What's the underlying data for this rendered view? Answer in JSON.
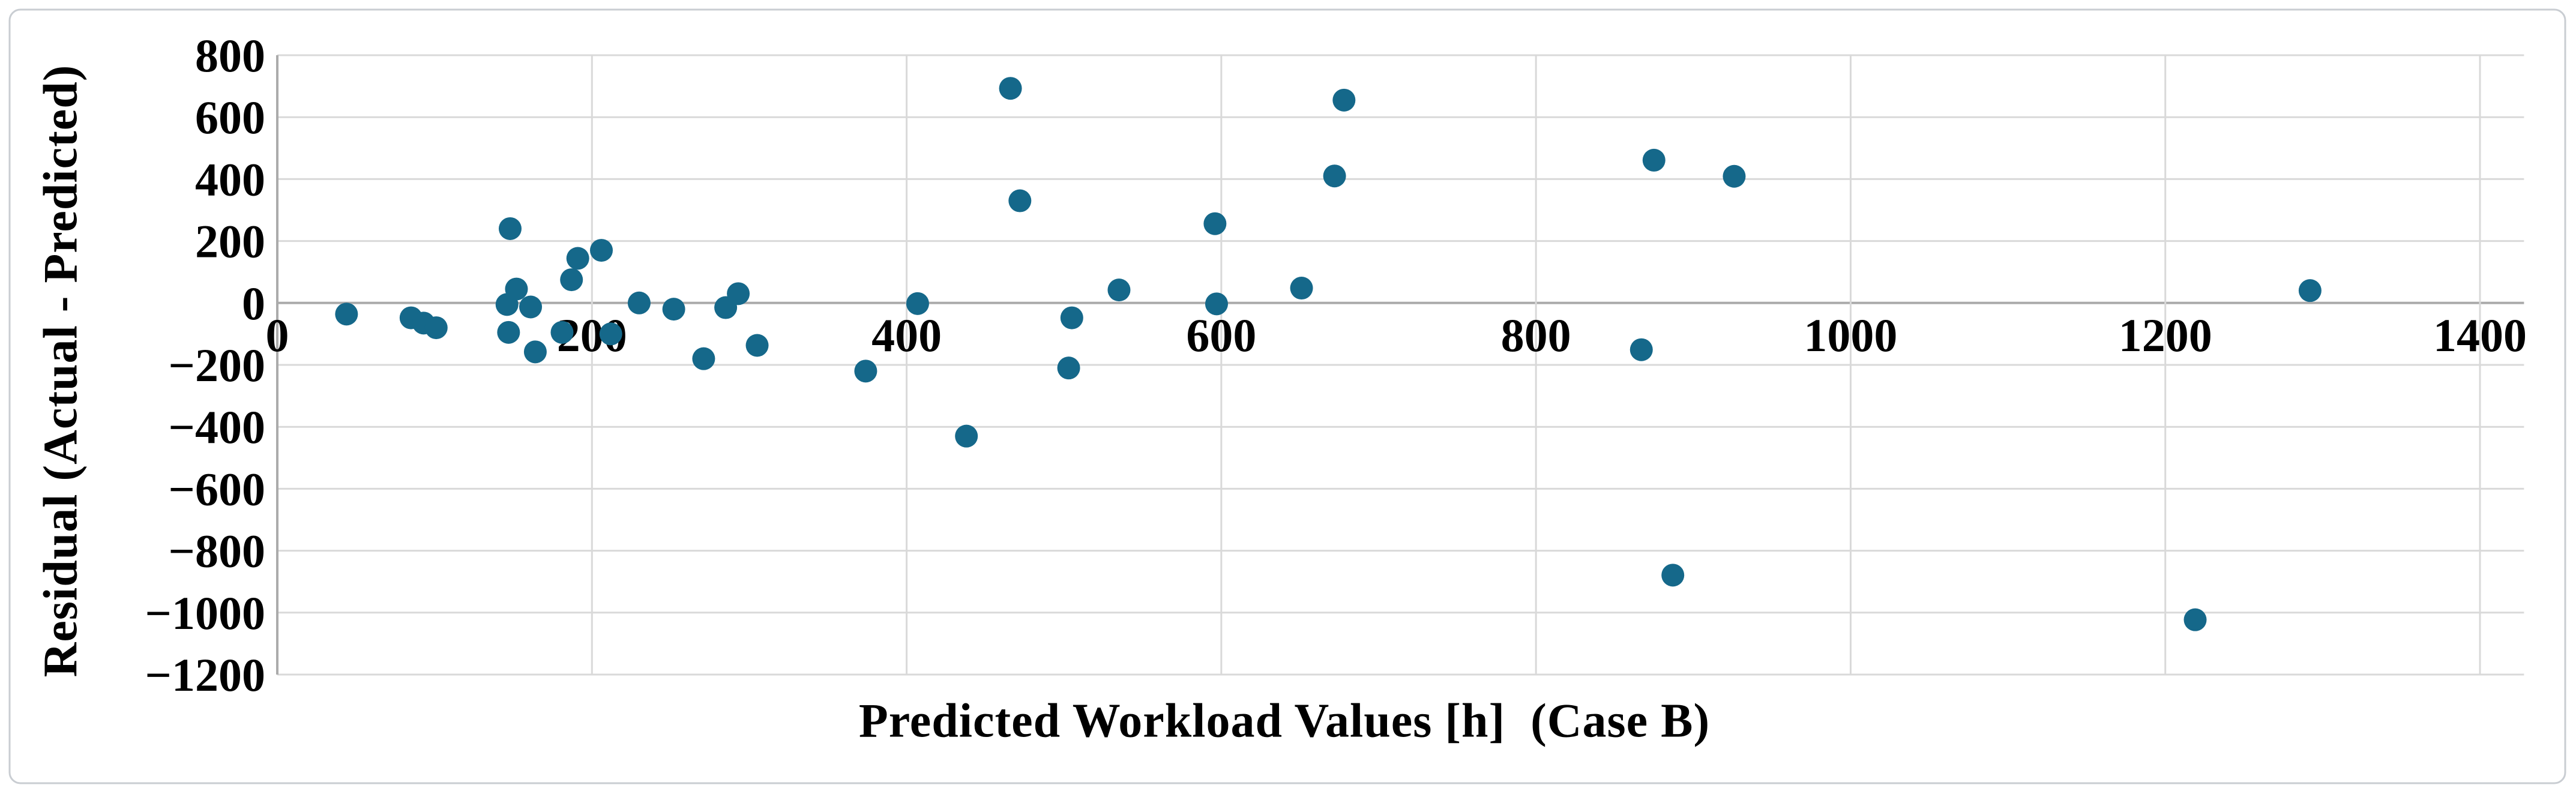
{
  "figure": {
    "background_color": "#FFFFFF",
    "border_color": "#C9CDD2"
  },
  "chart_data": {
    "type": "scatter",
    "title": "",
    "xlabel": "Predicted Workload Values [h]  (Case B)",
    "ylabel": "Residual (Actual - Predicted)",
    "xlim": [
      0,
      1428
    ],
    "ylim": [
      -1200,
      800
    ],
    "grid": true,
    "legend": "none",
    "x_ticks": [
      0,
      200,
      400,
      600,
      800,
      1000,
      1200,
      1400
    ],
    "x_tick_labels": [
      "0",
      "200",
      "400",
      "600",
      "800",
      "1000",
      "1200",
      "1400"
    ],
    "y_ticks": [
      800,
      600,
      400,
      200,
      0,
      -200,
      -400,
      -600,
      -800,
      -1000,
      -1200
    ],
    "y_tick_labels": [
      "800",
      "600",
      "400",
      "200",
      "0",
      "−200",
      "−400",
      "−600",
      "−800",
      "−1000",
      "−1200"
    ],
    "marker_color": "#15688A",
    "marker_radius_px": 19,
    "gridline_color": "#D9D9D9",
    "axisline_color": "#ABABAB",
    "tick_label_color": "#000000",
    "points": [
      [
        44,
        -36
      ],
      [
        85,
        -48
      ],
      [
        93,
        -65
      ],
      [
        101,
        -80
      ],
      [
        148,
        240
      ],
      [
        146,
        -5
      ],
      [
        152,
        45
      ],
      [
        161,
        -13
      ],
      [
        147,
        -95
      ],
      [
        164,
        -158
      ],
      [
        181,
        -95
      ],
      [
        187,
        75
      ],
      [
        191,
        144
      ],
      [
        206,
        170
      ],
      [
        212,
        -100
      ],
      [
        230,
        0
      ],
      [
        252,
        -20
      ],
      [
        271,
        -180
      ],
      [
        285,
        -15
      ],
      [
        293,
        30
      ],
      [
        305,
        -137
      ],
      [
        374,
        -220
      ],
      [
        407,
        -2
      ],
      [
        438,
        -430
      ],
      [
        466,
        693
      ],
      [
        472,
        330
      ],
      [
        505,
        -48
      ],
      [
        503,
        -210
      ],
      [
        535,
        42
      ],
      [
        596,
        256
      ],
      [
        597,
        -3
      ],
      [
        651,
        48
      ],
      [
        672,
        410
      ],
      [
        678,
        655
      ],
      [
        867,
        -151
      ],
      [
        875,
        461
      ],
      [
        926,
        409
      ],
      [
        887,
        -879
      ],
      [
        1219,
        -1023
      ],
      [
        1292,
        40
      ]
    ]
  }
}
